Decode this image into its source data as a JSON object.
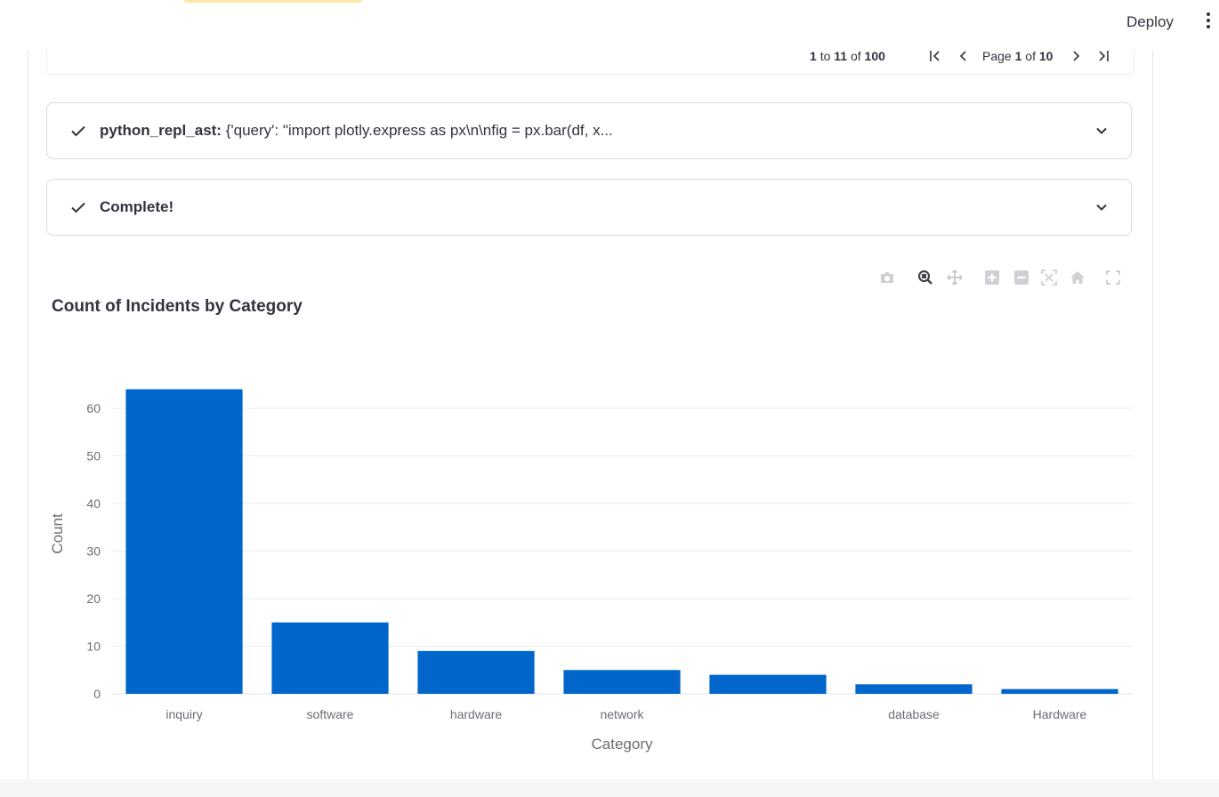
{
  "header": {
    "deploy_label": "Deploy"
  },
  "grid_footer": {
    "range_start": "1",
    "range_to": "to",
    "range_end": "11",
    "range_of": "of",
    "total": "100",
    "page_word": "Page",
    "page_current": "1",
    "page_of": "of",
    "page_total": "10"
  },
  "expanders": [
    {
      "label_bold": "python_repl_ast:",
      "label_rest": " {'query': \"import plotly.express as px\\n\\nfig = px.bar(df, x..."
    },
    {
      "label_bold": "Complete!",
      "label_rest": ""
    }
  ],
  "chart_data": {
    "type": "bar",
    "title": "Count of Incidents by Category",
    "xlabel": "Category",
    "ylabel": "Count",
    "categories": [
      "inquiry",
      "software",
      "hardware",
      "network",
      "",
      "database",
      "Hardware"
    ],
    "values": [
      64,
      15,
      9,
      5,
      4,
      2,
      1
    ],
    "ylim": [
      0,
      67
    ],
    "yticks": [
      0,
      10,
      20,
      30,
      40,
      50,
      60
    ],
    "bar_color": "#0066cc",
    "grid": true
  }
}
